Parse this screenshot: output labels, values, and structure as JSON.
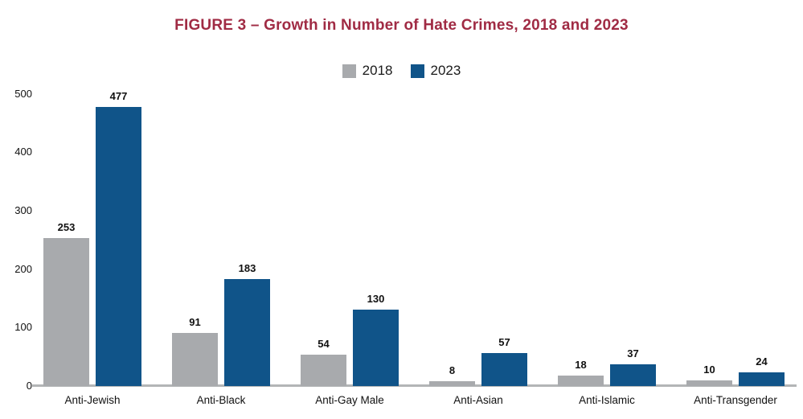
{
  "title": "FIGURE 3 – Growth in Number of Hate Crimes, 2018 and 2023",
  "colors": {
    "title": "#a02b44",
    "bar_2018": "#a8aaad",
    "bar_2023": "#105489",
    "axis_line": "#b3b5b6",
    "text": "#1a1a1a"
  },
  "legend": {
    "items": [
      {
        "label": "2018",
        "color": "#a8aaad"
      },
      {
        "label": "2023",
        "color": "#105489"
      }
    ]
  },
  "chart_data": {
    "type": "bar",
    "categories": [
      "Anti-Jewish",
      "Anti-Black",
      "Anti-Gay Male",
      "Anti-Asian",
      "Anti-Islamic",
      "Anti-Transgender"
    ],
    "series": [
      {
        "name": "2018",
        "color": "#a8aaad",
        "values": [
          253,
          91,
          54,
          8,
          18,
          10
        ]
      },
      {
        "name": "2023",
        "color": "#105489",
        "values": [
          477,
          183,
          130,
          57,
          37,
          24
        ]
      }
    ],
    "title": "FIGURE 3 – Growth in Number of Hate Crimes, 2018 and 2023",
    "xlabel": "",
    "ylabel": "",
    "ylim": [
      0,
      500
    ],
    "yticks": [
      0,
      100,
      200,
      300,
      400,
      500
    ],
    "grid": false,
    "legend_position": "top-center",
    "value_labels": true
  }
}
